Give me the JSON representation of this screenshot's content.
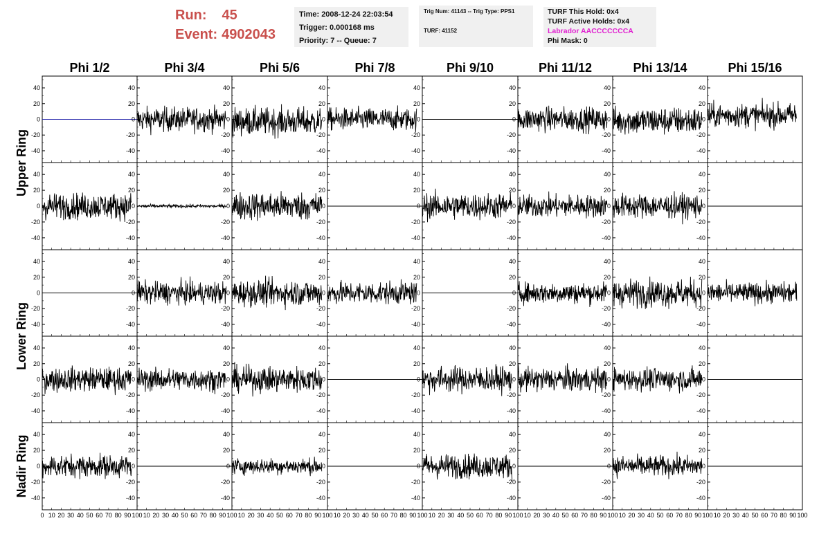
{
  "header": {
    "run_label": "Run:",
    "run_value": "45",
    "event_label": "Event:",
    "event_value": "4902043",
    "time": "Time: 2008-12-24 22:03:54",
    "trigger": "Trigger: 0.000168 ms",
    "priority": "Priority: 7 -- Queue: 7",
    "trig_num": "Trig Num: 41143 -- Trig Type: PPS1",
    "turf": "TURF: 41152",
    "turf_hold": "TURF This Hold: 0x4",
    "turf_active": "TURF Active Holds: 0x4",
    "labrador": "Labrador AACCCCCCCA",
    "phi_mask": "Phi Mask: 0"
  },
  "chart_data": {
    "type": "line",
    "columns": [
      "Phi 1/2",
      "Phi 3/4",
      "Phi 5/6",
      "Phi 7/8",
      "Phi 9/10",
      "Phi 11/12",
      "Phi 13/14",
      "Phi 15/16"
    ],
    "row_labels": [
      "Upper Ring",
      "Lower Ring",
      "Nadir Ring"
    ],
    "rows": 5,
    "xlim": [
      0,
      100
    ],
    "ylim": [
      -55,
      55
    ],
    "x_ticks": [
      0,
      10,
      20,
      30,
      40,
      50,
      60,
      70,
      80,
      90,
      100
    ],
    "y_ticks": [
      -40,
      -20,
      0,
      20,
      40
    ],
    "colors": {
      "trace": "#000000",
      "flat_blue": "#2222aa"
    },
    "panel_amplitude": [
      [
        0,
        14,
        16,
        13,
        0,
        14,
        16,
        14
      ],
      [
        15,
        2,
        16,
        0,
        15,
        13,
        14,
        0
      ],
      [
        0,
        13,
        15,
        13,
        0,
        12,
        16,
        12
      ],
      [
        14,
        13,
        15,
        0,
        15,
        14,
        13,
        0
      ],
      [
        13,
        0,
        9,
        0,
        14,
        0,
        12,
        0
      ]
    ],
    "panel_offset": [
      [
        0,
        0,
        -3,
        0,
        0,
        0,
        -2,
        5
      ],
      [
        0,
        0,
        0,
        0,
        0,
        0,
        0,
        0
      ],
      [
        0,
        0,
        0,
        0,
        0,
        0,
        0,
        0
      ],
      [
        0,
        0,
        0,
        0,
        0,
        0,
        0,
        0
      ],
      [
        0,
        0,
        0,
        0,
        0,
        0,
        0,
        0
      ]
    ]
  }
}
